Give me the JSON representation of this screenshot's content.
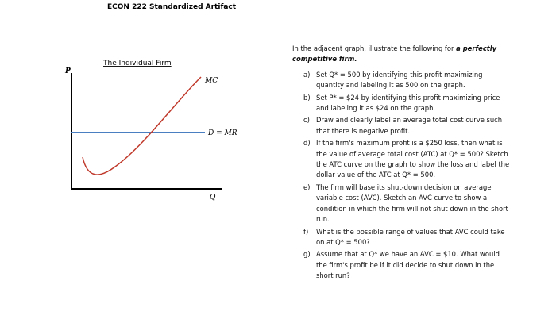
{
  "header": {
    "title": "ECON 222 Standardized Artifact"
  },
  "graph": {
    "title": "The Individual Firm",
    "y_axis_label": "P",
    "x_axis_label": "Q",
    "curves": {
      "mc": "MC",
      "demand": "D = MR"
    }
  },
  "instructions": {
    "intro": "In the adjacent graph, illustrate the following for",
    "intro_emphasis": "a perfectly competitive firm.",
    "items": [
      {
        "label": "a)",
        "text": "Set Q* = 500 by identifying this profit maximizing quantity and labeling it as 500 on the graph."
      },
      {
        "label": "b)",
        "text": "Set P* = $24 by identifying this profit maximizing price and labeling it as $24 on the graph."
      },
      {
        "label": "c)",
        "text": "Draw and clearly label an average total cost curve such that there is negative profit."
      },
      {
        "label": "d)",
        "text": "If the firm's maximum profit is a $250 loss, then what is the value of average total cost (ATC) at Q* = 500? Sketch the ATC curve on the graph to show the loss and label the dollar value of the ATC at Q* = 500."
      },
      {
        "label": "e)",
        "text": "The firm will base its shut-down decision on average variable cost (AVC). Sketch an AVC curve to show a condition in which the firm will not shut down in the short run."
      },
      {
        "label": "f)",
        "text": "What is the possible range of values that AVC could take on at Q* = 500?"
      },
      {
        "label": "g)",
        "text": "Assume that at Q* we have an AVC = $10. What would the firm's profit be if it did decide to shut down in the short run?"
      }
    ]
  }
}
